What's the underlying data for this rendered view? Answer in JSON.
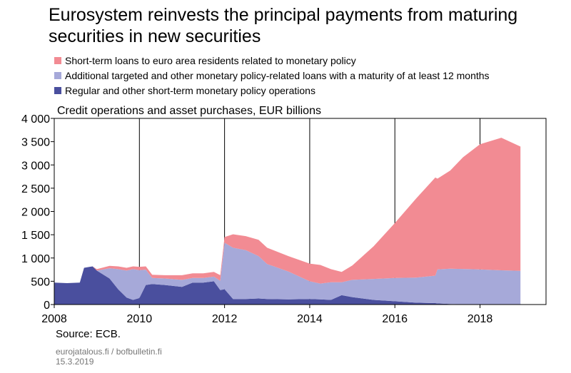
{
  "title": "Eurosystem reinvests the principal payments from maturing securities in new securities",
  "subtitle": "Credit operations and asset purchases, EUR billions",
  "legend": [
    {
      "label": "Short-term loans to euro area residents related to monetary policy",
      "color": "#f28b93"
    },
    {
      "label": "Additional targeted and other monetary policy-related loans with a maturity of at least 12 months",
      "color": "#a6a9d9"
    },
    {
      "label": "Regular and other short-term monetary policy operations",
      "color": "#4a4f9e"
    }
  ],
  "source": "Source: ECB.",
  "footer": {
    "line1": "eurojatalous.fi / bofbulletin.fi",
    "line2": "15.3.2019"
  },
  "chart_data": {
    "type": "area",
    "stacked": true,
    "x_ticks": [
      2008,
      2010,
      2012,
      2014,
      2016,
      2018
    ],
    "x_tick_labels": [
      "2008",
      "2010",
      "2012",
      "2014",
      "2016",
      "2018"
    ],
    "xlim": [
      2008.0,
      2019.55
    ],
    "y_ticks": [
      0,
      500,
      1000,
      1500,
      2000,
      2500,
      3000,
      3500,
      4000
    ],
    "y_tick_labels": [
      "0",
      "500",
      "1 000",
      "1 500",
      "2 000",
      "2 500",
      "3 000",
      "3 500",
      "4 000"
    ],
    "ylim": [
      0,
      4000
    ],
    "grid": "vertical",
    "x": [
      2008.0,
      2008.3,
      2008.6,
      2008.7,
      2008.9,
      2009.0,
      2009.3,
      2009.5,
      2009.7,
      2009.85,
      2010.0,
      2010.15,
      2010.3,
      2010.6,
      2011.0,
      2011.25,
      2011.5,
      2011.75,
      2011.9,
      2012.0,
      2012.2,
      2012.5,
      2012.8,
      2013.0,
      2013.5,
      2014.0,
      2014.25,
      2014.5,
      2014.75,
      2015.0,
      2015.5,
      2016.0,
      2016.5,
      2016.95,
      2017.0,
      2017.3,
      2017.6,
      2018.0,
      2018.5,
      2018.95
    ],
    "series": [
      {
        "name": "Regular and other short-term monetary policy operations",
        "color": "#4a4f9e",
        "values": [
          470,
          460,
          470,
          790,
          820,
          730,
          560,
          330,
          150,
          100,
          140,
          420,
          440,
          420,
          380,
          470,
          470,
          500,
          310,
          330,
          120,
          120,
          130,
          120,
          110,
          120,
          110,
          100,
          200,
          160,
          100,
          70,
          40,
          30,
          25,
          10,
          5,
          5,
          5,
          5
        ]
      },
      {
        "name": "Additional targeted and other monetary policy-related loans with a maturity of at least 12 months",
        "color": "#a6a9d9",
        "values": [
          0,
          0,
          0,
          0,
          0,
          0,
          220,
          430,
          580,
          660,
          600,
          330,
          130,
          140,
          150,
          100,
          100,
          100,
          200,
          1000,
          1100,
          1050,
          910,
          750,
          600,
          380,
          340,
          380,
          280,
          370,
          450,
          500,
          540,
          590,
          730,
          760,
          760,
          750,
          730,
          720
        ]
      },
      {
        "name": "Short-term loans to euro area residents related to monetary policy",
        "color": "#f28b93",
        "values": [
          0,
          0,
          0,
          0,
          0,
          30,
          50,
          60,
          60,
          60,
          70,
          70,
          70,
          70,
          100,
          100,
          100,
          100,
          120,
          120,
          290,
          300,
          350,
          350,
          330,
          380,
          400,
          280,
          220,
          310,
          700,
          1180,
          1700,
          2110,
          1950,
          2110,
          2400,
          2690,
          2850,
          2670
        ]
      }
    ]
  }
}
